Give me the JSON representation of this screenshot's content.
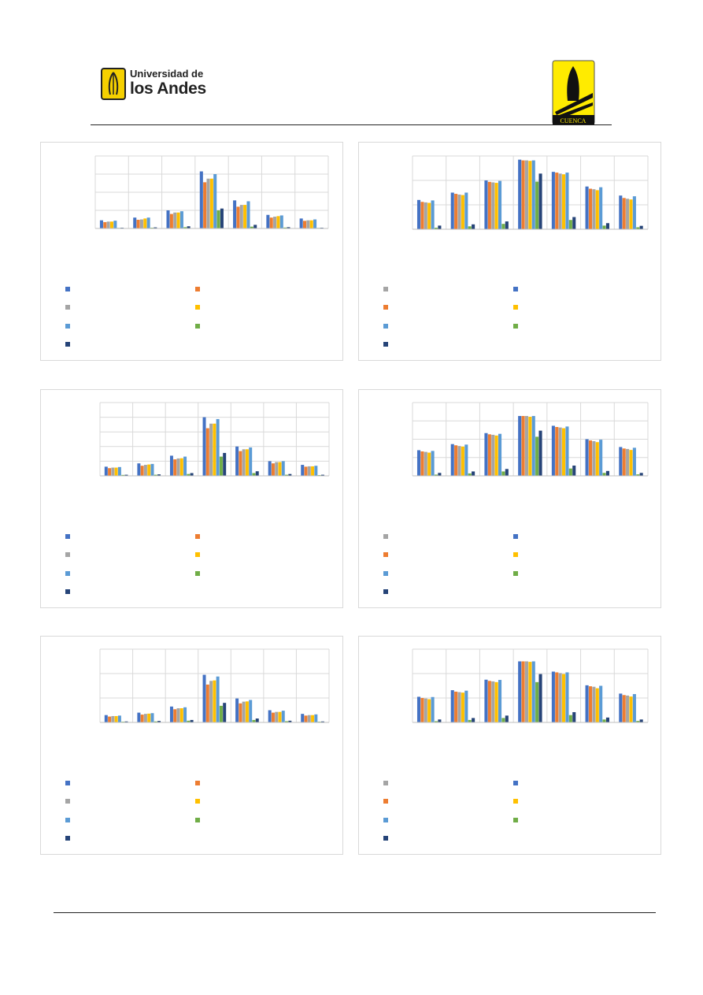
{
  "header": {
    "university_logo": {
      "line1": "Universidad de",
      "line2": "los Andes",
      "color": "#f5d000"
    },
    "cuenca_logo": {
      "label": "CUENCA",
      "bg": "#ffeb00"
    }
  },
  "series_colors": [
    "#4472c4",
    "#ed7d31",
    "#a5a5a5",
    "#ffc000",
    "#5b9bd5",
    "#70ad47",
    "#264478"
  ],
  "legend_color_order": {
    "left": [
      "#4472c4",
      "#a5a5a5",
      "#5b9bd5",
      "#264478",
      "#ed7d31",
      "#ffc000",
      "#70ad47"
    ],
    "right": [
      "#a5a5a5",
      "#ed7d31",
      "#5b9bd5",
      "#264478",
      "#4472c4",
      "#ffc000",
      "#70ad47"
    ]
  },
  "chart_data": [
    {
      "type": "bar",
      "categories": [
        "",
        "",
        "",
        "",
        "",
        "",
        ""
      ],
      "ylim": [
        0,
        40
      ],
      "series": [
        {
          "values": [
            4.5,
            6.0,
            10.0,
            31.5,
            15.5,
            7.5,
            5.5
          ]
        },
        {
          "values": [
            3.5,
            4.8,
            8.0,
            25.5,
            12.0,
            6.0,
            4.2
          ]
        },
        {
          "values": [
            3.8,
            5.0,
            8.8,
            27.5,
            13.0,
            6.5,
            4.5
          ]
        },
        {
          "values": [
            3.8,
            5.5,
            8.8,
            27.5,
            13.0,
            6.8,
            4.5
          ]
        },
        {
          "values": [
            4.3,
            6.0,
            9.5,
            30.0,
            15.0,
            7.2,
            5.0
          ]
        },
        {
          "values": [
            0.3,
            0.4,
            0.7,
            10.0,
            1.0,
            0.5,
            0.3
          ]
        },
        {
          "values": [
            0.4,
            0.6,
            1.2,
            11.0,
            2.0,
            0.7,
            0.4
          ]
        }
      ],
      "legend_position": "bottom"
    },
    {
      "type": "bar",
      "categories": [
        "",
        "",
        "",
        "",
        "",
        "",
        ""
      ],
      "ylim": [
        0,
        3
      ],
      "series": [
        {
          "values": [
            1.2,
            1.5,
            2.0,
            2.85,
            2.35,
            1.75,
            1.38
          ]
        },
        {
          "values": [
            1.12,
            1.45,
            1.94,
            2.82,
            2.32,
            1.66,
            1.28
          ]
        },
        {
          "values": [
            1.1,
            1.42,
            1.92,
            2.82,
            2.28,
            1.64,
            1.25
          ]
        },
        {
          "values": [
            1.08,
            1.4,
            1.9,
            2.8,
            2.25,
            1.6,
            1.22
          ]
        },
        {
          "values": [
            1.18,
            1.5,
            1.98,
            2.82,
            2.32,
            1.72,
            1.35
          ]
        },
        {
          "values": [
            0.06,
            0.12,
            0.22,
            1.95,
            0.38,
            0.15,
            0.08
          ]
        },
        {
          "values": [
            0.15,
            0.2,
            0.32,
            2.28,
            0.5,
            0.25,
            0.14
          ]
        }
      ],
      "legend_position": "bottom"
    },
    {
      "type": "bar",
      "categories": [
        "",
        "",
        "",
        "",
        "",
        "",
        ""
      ],
      "ylim": [
        0,
        40
      ],
      "series": [
        {
          "values": [
            5.0,
            6.8,
            11.0,
            32.0,
            16.0,
            8.0,
            6.0
          ]
        },
        {
          "values": [
            4.2,
            5.5,
            9.0,
            26.0,
            13.5,
            6.8,
            5.0
          ]
        },
        {
          "values": [
            4.5,
            6.0,
            9.5,
            28.5,
            14.5,
            7.5,
            5.2
          ]
        },
        {
          "values": [
            4.5,
            6.2,
            9.6,
            28.5,
            14.5,
            7.5,
            5.2
          ]
        },
        {
          "values": [
            4.8,
            6.5,
            10.5,
            31.0,
            15.5,
            8.0,
            5.5
          ]
        },
        {
          "values": [
            0.5,
            0.6,
            1.0,
            10.5,
            1.5,
            0.6,
            0.4
          ]
        },
        {
          "values": [
            0.6,
            0.8,
            1.5,
            12.5,
            2.5,
            1.0,
            0.6
          ]
        }
      ],
      "legend_position": "bottom"
    },
    {
      "type": "bar",
      "categories": [
        "",
        "",
        "",
        "",
        "",
        "",
        ""
      ],
      "ylim": [
        0,
        3
      ],
      "series": [
        {
          "values": [
            1.05,
            1.3,
            1.75,
            2.45,
            2.05,
            1.5,
            1.18
          ]
        },
        {
          "values": [
            1.0,
            1.25,
            1.7,
            2.45,
            2.0,
            1.45,
            1.12
          ]
        },
        {
          "values": [
            0.98,
            1.22,
            1.68,
            2.45,
            1.98,
            1.42,
            1.1
          ]
        },
        {
          "values": [
            0.95,
            1.2,
            1.65,
            2.42,
            1.95,
            1.38,
            1.06
          ]
        },
        {
          "values": [
            1.02,
            1.28,
            1.72,
            2.45,
            2.02,
            1.48,
            1.15
          ]
        },
        {
          "values": [
            0.05,
            0.1,
            0.18,
            1.6,
            0.3,
            0.12,
            0.06
          ]
        },
        {
          "values": [
            0.12,
            0.18,
            0.28,
            1.85,
            0.42,
            0.2,
            0.12
          ]
        }
      ],
      "legend_position": "bottom"
    },
    {
      "type": "bar",
      "categories": [
        "",
        "",
        "",
        "",
        "",
        "",
        ""
      ],
      "ylim": [
        0,
        30
      ],
      "series": [
        {
          "values": [
            3.0,
            4.0,
            6.5,
            19.5,
            9.8,
            5.0,
            3.5
          ]
        },
        {
          "values": [
            2.4,
            3.2,
            5.4,
            15.5,
            7.8,
            4.0,
            2.8
          ]
        },
        {
          "values": [
            2.6,
            3.5,
            5.8,
            17.0,
            8.5,
            4.3,
            3.0
          ]
        },
        {
          "values": [
            2.6,
            3.6,
            5.8,
            17.2,
            8.6,
            4.3,
            3.0
          ]
        },
        {
          "values": [
            2.8,
            3.8,
            6.2,
            18.8,
            9.2,
            4.8,
            3.3
          ]
        },
        {
          "values": [
            0.3,
            0.4,
            0.7,
            6.8,
            1.0,
            0.5,
            0.3
          ]
        },
        {
          "values": [
            0.4,
            0.6,
            1.0,
            8.0,
            1.6,
            0.7,
            0.4
          ]
        }
      ],
      "legend_position": "bottom"
    },
    {
      "type": "bar",
      "categories": [
        "",
        "",
        "",
        "",
        "",
        "",
        ""
      ],
      "ylim": [
        0,
        3
      ],
      "series": [
        {
          "values": [
            1.05,
            1.32,
            1.75,
            2.5,
            2.08,
            1.52,
            1.18
          ]
        },
        {
          "values": [
            1.0,
            1.26,
            1.7,
            2.5,
            2.05,
            1.48,
            1.12
          ]
        },
        {
          "values": [
            0.98,
            1.24,
            1.68,
            2.5,
            2.02,
            1.46,
            1.1
          ]
        },
        {
          "values": [
            0.95,
            1.22,
            1.65,
            2.48,
            1.98,
            1.4,
            1.06
          ]
        },
        {
          "values": [
            1.04,
            1.3,
            1.74,
            2.5,
            2.05,
            1.5,
            1.16
          ]
        },
        {
          "values": [
            0.05,
            0.1,
            0.18,
            1.65,
            0.3,
            0.12,
            0.06
          ]
        },
        {
          "values": [
            0.12,
            0.18,
            0.28,
            1.98,
            0.42,
            0.2,
            0.12
          ]
        }
      ],
      "legend_position": "bottom"
    }
  ]
}
